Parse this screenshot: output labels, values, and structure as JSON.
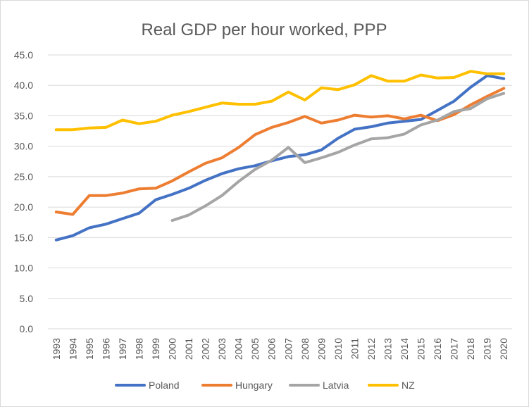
{
  "chart_data": {
    "type": "line",
    "title": "Real GDP per hour worked, PPP",
    "xlabel": "",
    "ylabel": "",
    "ylim": [
      0,
      45
    ],
    "yticks": [
      "0.0",
      "5.0",
      "10.0",
      "15.0",
      "20.0",
      "25.0",
      "30.0",
      "35.0",
      "40.0",
      "45.0"
    ],
    "grid": true,
    "legend_position": "bottom",
    "categories": [
      "1993",
      "1994",
      "1995",
      "1996",
      "1997",
      "1998",
      "1999",
      "2000",
      "2001",
      "2002",
      "2003",
      "2004",
      "2005",
      "2006",
      "2007",
      "2008",
      "2009",
      "2010",
      "2011",
      "2012",
      "2013",
      "2014",
      "2015",
      "2016",
      "2017",
      "2018",
      "2019",
      "2020"
    ],
    "series": [
      {
        "name": "Poland",
        "color": "#4472c4",
        "values": [
          14.6,
          15.3,
          16.6,
          17.2,
          18.1,
          19.0,
          21.2,
          22.1,
          23.1,
          24.4,
          25.5,
          26.3,
          26.8,
          27.6,
          28.3,
          28.6,
          29.4,
          31.3,
          32.8,
          33.2,
          33.8,
          34.1,
          34.4,
          35.9,
          37.4,
          39.7,
          41.6,
          41.1
        ]
      },
      {
        "name": "Hungary",
        "color": "#ed7d31",
        "values": [
          19.2,
          18.8,
          21.9,
          21.9,
          22.3,
          23.0,
          23.1,
          24.3,
          25.8,
          27.2,
          28.1,
          29.8,
          31.9,
          33.1,
          33.9,
          34.9,
          33.8,
          34.3,
          35.1,
          34.8,
          35.0,
          34.5,
          35.1,
          34.2,
          35.2,
          36.8,
          38.2,
          39.5
        ]
      },
      {
        "name": "Latvia",
        "color": "#a5a5a5",
        "values": [
          null,
          null,
          null,
          null,
          null,
          null,
          null,
          17.8,
          18.7,
          20.2,
          21.9,
          24.2,
          26.2,
          27.7,
          29.8,
          27.3,
          28.1,
          29.0,
          30.2,
          31.2,
          31.4,
          32.0,
          33.5,
          34.3,
          35.7,
          36.2,
          37.8,
          38.7
        ]
      },
      {
        "name": "NZ",
        "color": "#ffc000",
        "values": [
          32.7,
          32.7,
          33.0,
          33.1,
          34.3,
          33.7,
          34.1,
          35.1,
          35.7,
          36.4,
          37.1,
          36.9,
          36.9,
          37.4,
          38.9,
          37.6,
          39.6,
          39.3,
          40.1,
          41.6,
          40.7,
          40.7,
          41.7,
          41.2,
          41.3,
          42.3,
          41.9,
          41.9
        ]
      }
    ]
  }
}
